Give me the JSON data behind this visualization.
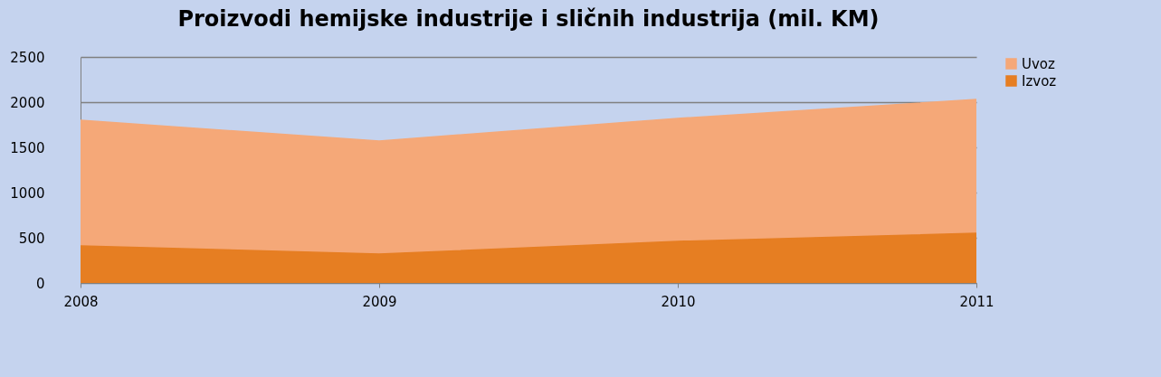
{
  "chart_data": {
    "type": "area",
    "title": "Proizvodi hemijske industrije i sličnih industrija (mil. KM)",
    "categories": [
      "2008",
      "2009",
      "2010",
      "2011"
    ],
    "series": [
      {
        "name": "Uvoz",
        "color": "#f5a878",
        "values": [
          1800,
          1570,
          1820,
          2030
        ]
      },
      {
        "name": "Izvoz",
        "color": "#e67e22",
        "values": [
          410,
          320,
          460,
          550
        ]
      }
    ],
    "ylim": [
      0,
      2500
    ],
    "yticks": [
      0,
      500,
      1000,
      1500,
      2000,
      2500
    ],
    "grid": "y",
    "legend": "right"
  }
}
